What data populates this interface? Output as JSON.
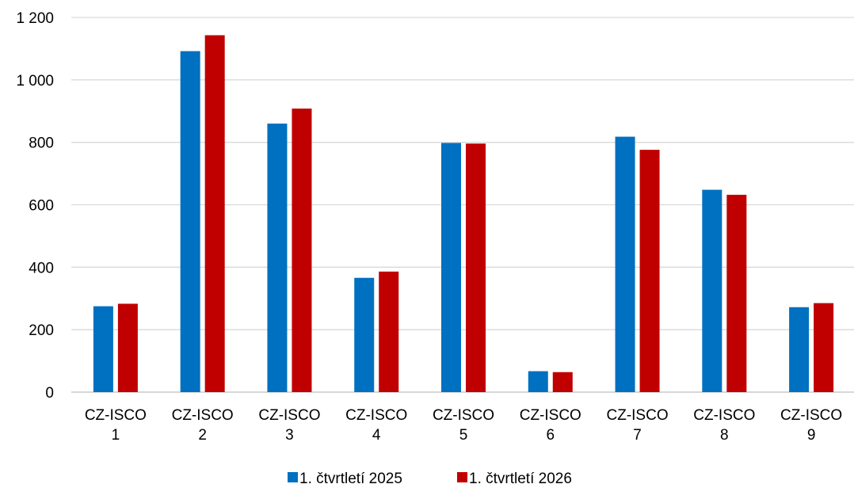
{
  "chart_data": {
    "type": "bar",
    "title": "",
    "xlabel": "",
    "ylabel": "",
    "ylim": [
      0,
      1200
    ],
    "yticks": [
      0,
      200,
      400,
      600,
      800,
      1000,
      1200
    ],
    "ytick_labels": [
      "0",
      "200",
      "400",
      "600",
      "800",
      "1 000",
      "1 200"
    ],
    "grid": true,
    "legend_position": "bottom",
    "categories": [
      [
        "CZ-ISCO",
        "1"
      ],
      [
        "CZ-ISCO",
        "2"
      ],
      [
        "CZ-ISCO",
        "3"
      ],
      [
        "CZ-ISCO",
        "4"
      ],
      [
        "CZ-ISCO",
        "5"
      ],
      [
        "CZ-ISCO",
        "6"
      ],
      [
        "CZ-ISCO",
        "7"
      ],
      [
        "CZ-ISCO",
        "8"
      ],
      [
        "CZ-ISCO",
        "9"
      ]
    ],
    "series": [
      {
        "name": "1. čtvrtletí 2025",
        "color": "#0070c0",
        "values": [
          275,
          1092,
          860,
          366,
          798,
          67,
          818,
          648,
          272
        ]
      },
      {
        "name": "1. čtvrtletí 2026",
        "color": "#c00000",
        "values": [
          283,
          1143,
          908,
          386,
          796,
          64,
          776,
          632,
          285
        ]
      }
    ]
  }
}
